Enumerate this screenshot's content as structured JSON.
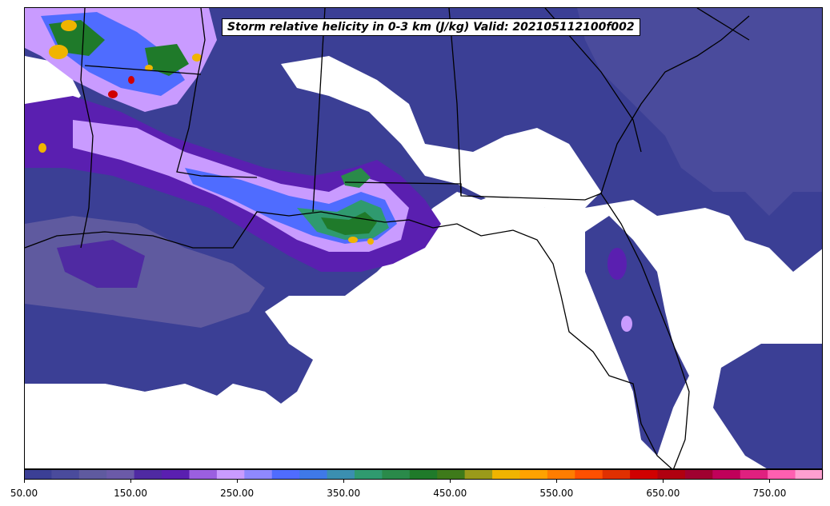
{
  "title": "Storm relative helicity in 0-3 km (J/kg) Valid: 202105112100f002",
  "colorbar": {
    "ticks": [
      "50.00",
      "150.00",
      "250.00",
      "350.00",
      "450.00",
      "550.00",
      "650.00",
      "750.00"
    ],
    "tick_values": [
      50,
      150,
      250,
      350,
      450,
      550,
      650,
      750
    ],
    "min": 50,
    "max": 800,
    "step": 25,
    "colors": [
      "#3b3f95",
      "#4a4b9c",
      "#5f5a9f",
      "#6b5aa8",
      "#4f2aa2",
      "#5a1fb0",
      "#9b5fe0",
      "#c99bff",
      "#8f88ff",
      "#4f6cff",
      "#3f79e8",
      "#3b8fb0",
      "#2f9a6f",
      "#2a8a4a",
      "#1f7a2a",
      "#3e7a1a",
      "#9a9a1a",
      "#f0b400",
      "#ffa200",
      "#ff7d00",
      "#ff5000",
      "#e03000",
      "#d00000",
      "#b00010",
      "#a00030",
      "#c0005a",
      "#e0207f",
      "#ff5fb0",
      "#ff9fd0"
    ]
  },
  "map": {
    "background": "#ffffff",
    "fill_colors": {
      "base": "#3b3f95",
      "dark": "#4a4b9c",
      "violet": "#5a1fb0",
      "lilac": "#c99bff",
      "blue": "#4f6cff",
      "teal": "#2f9a6f",
      "green": "#1f7a2a",
      "yellow": "#f0b400",
      "red": "#d00000"
    }
  }
}
